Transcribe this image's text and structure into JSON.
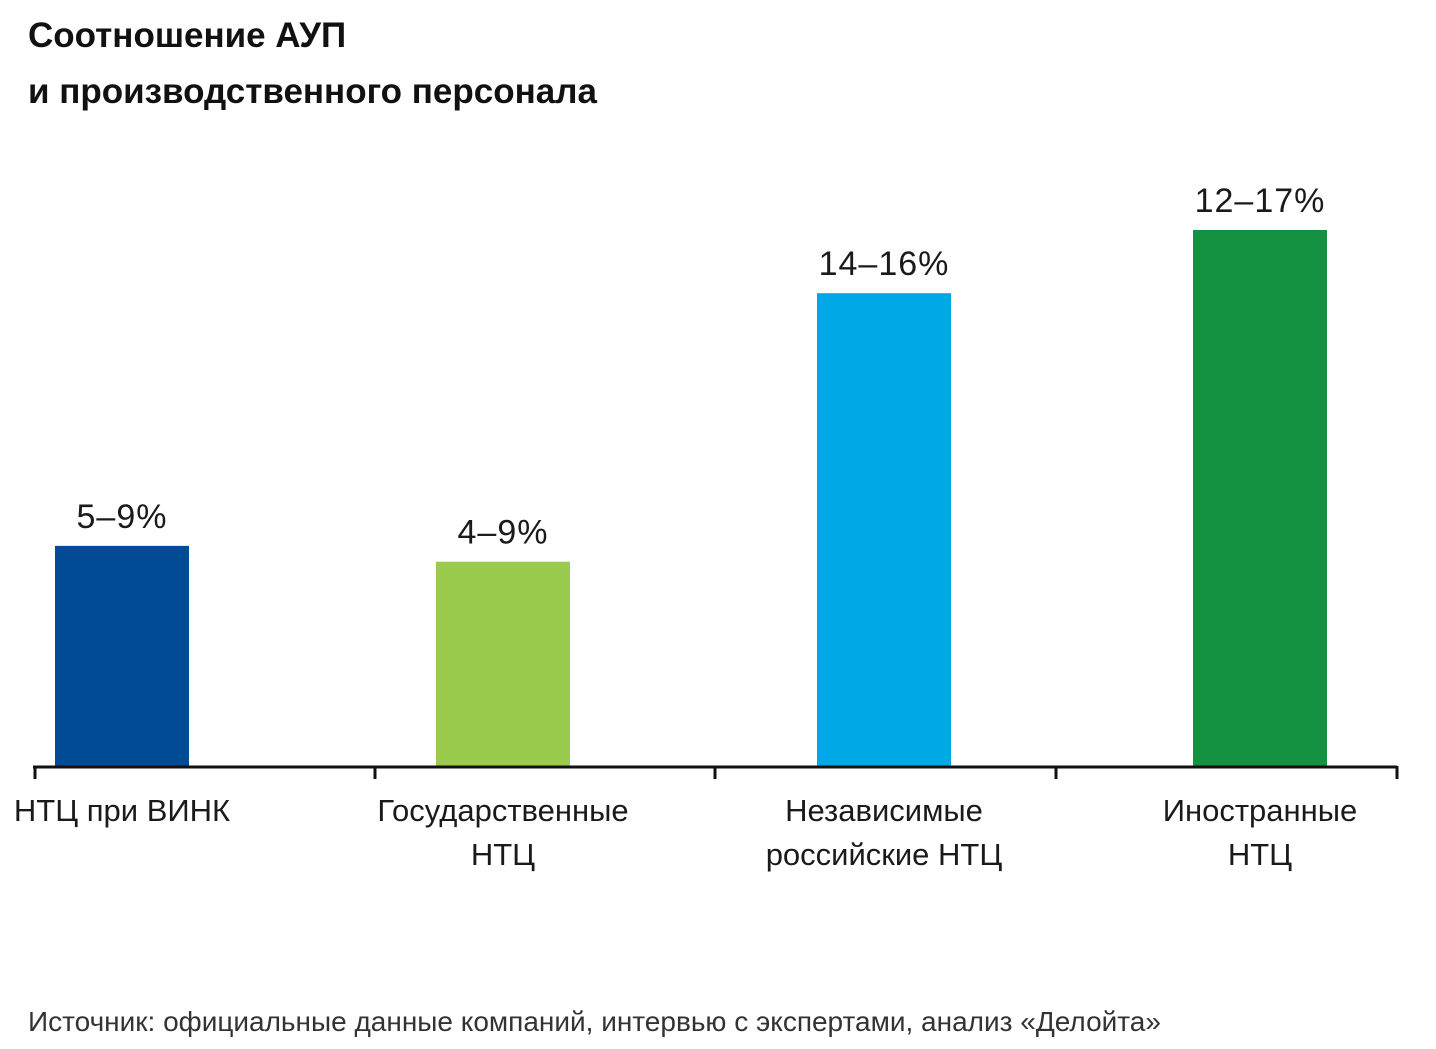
{
  "chart_data": {
    "type": "bar",
    "title_lines": [
      "Соотношение АУП",
      "и производственного персонала"
    ],
    "categories": [
      [
        "НТЦ при ВИНК"
      ],
      [
        "Государственные",
        "НТЦ"
      ],
      [
        "Независимые",
        "российские НТЦ"
      ],
      [
        "Иностранные",
        "НТЦ"
      ]
    ],
    "ranges": [
      [
        5,
        9
      ],
      [
        4,
        9
      ],
      [
        14,
        16
      ],
      [
        12,
        17
      ]
    ],
    "values": [
      7,
      6.5,
      15,
      17
    ],
    "data_labels": [
      "5–9%",
      "4–9%",
      "14–16%",
      "12–17%"
    ],
    "colors": [
      "#004b93",
      "#9bcb4c",
      "#00a9e5",
      "#149141"
    ],
    "ylim": [
      0,
      17
    ],
    "grid": false,
    "legend": "none",
    "source": "Источник: официальные данные компаний, интервью с экспертами, анализ «Делойта»"
  }
}
